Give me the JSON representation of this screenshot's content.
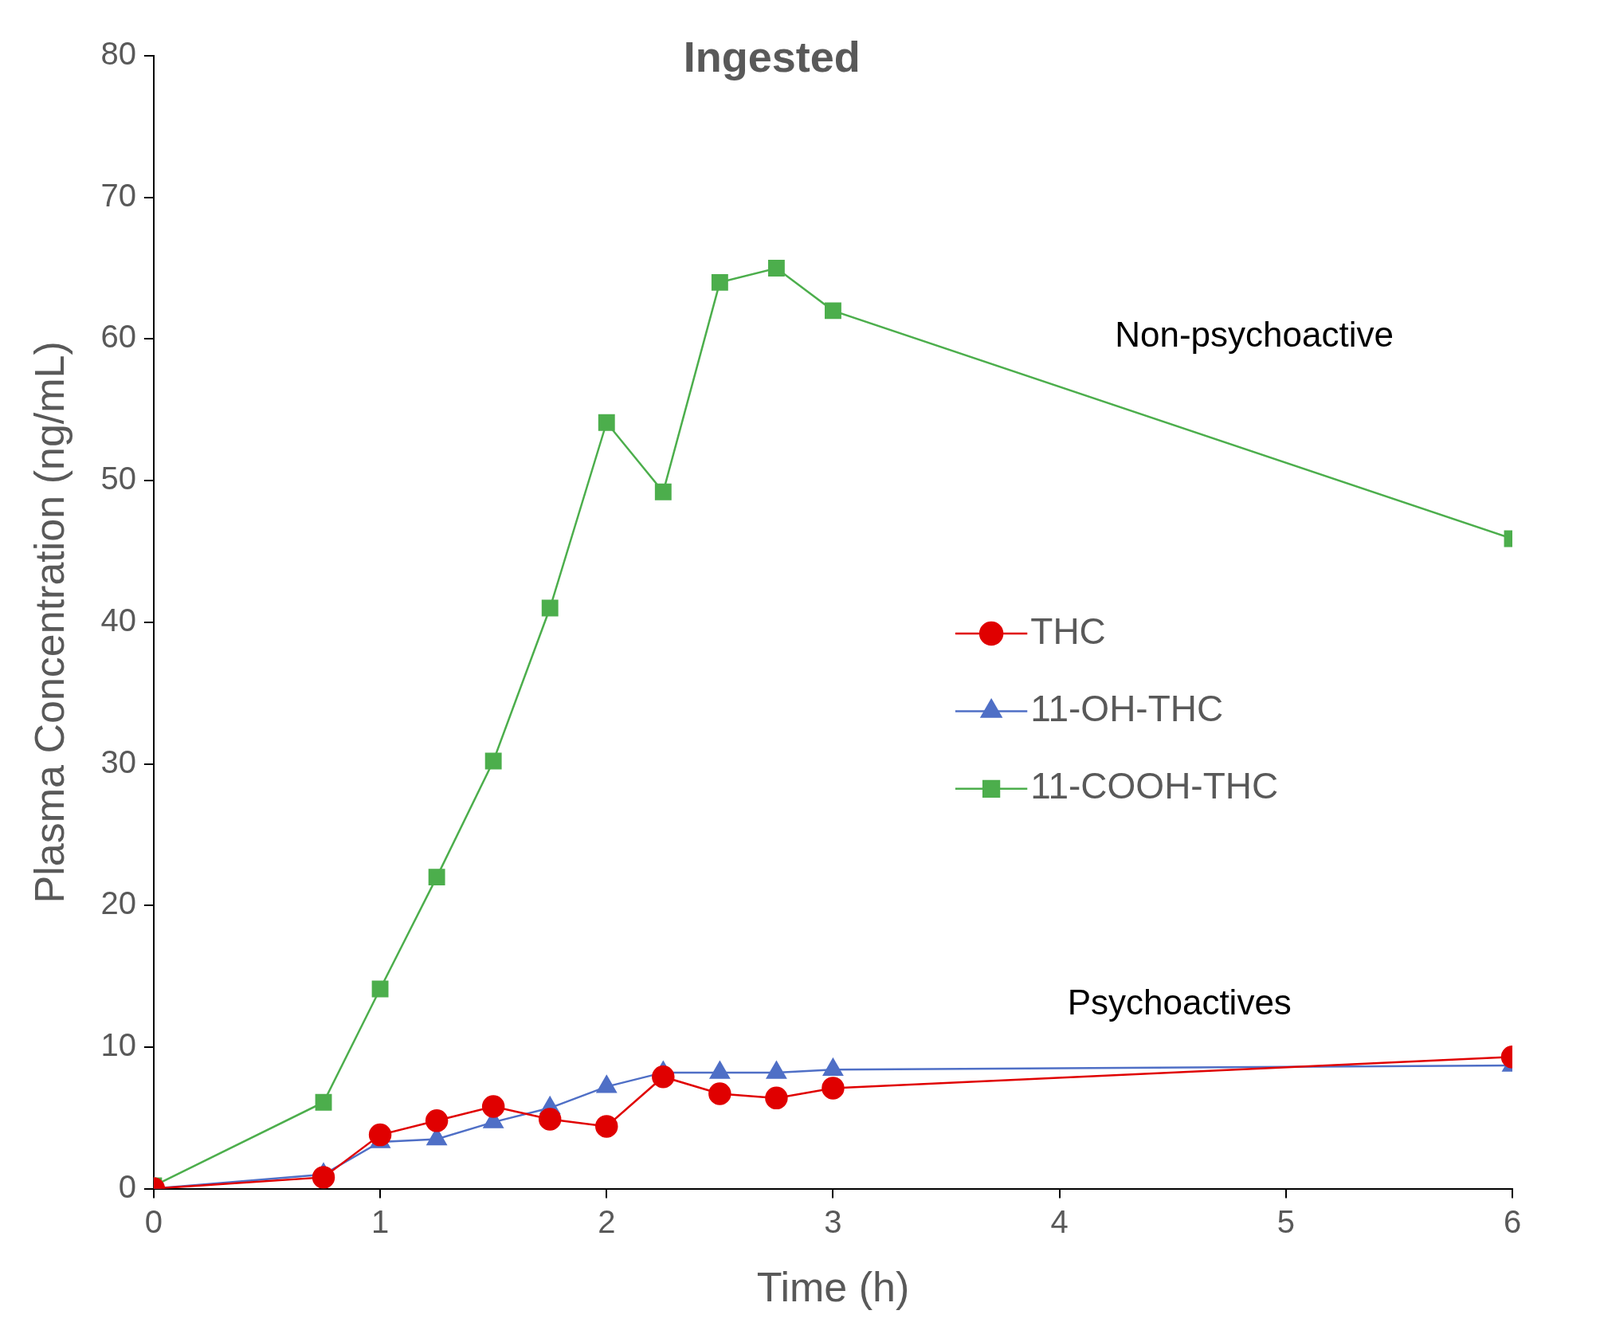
{
  "chart_data": {
    "type": "line",
    "title": "Ingested",
    "x_label": "Time (h)",
    "y_label": "Plasma Concentration (ng/mL)",
    "annotations": [
      "Non-psychoactive",
      "Psychoactives"
    ],
    "x": [
      0,
      0.75,
      1,
      1.25,
      1.5,
      1.75,
      2,
      2.25,
      2.5,
      2.75,
      3,
      6
    ],
    "series": [
      {
        "name": "THC",
        "color": "#e00000",
        "marker": "circle",
        "values": [
          0,
          0.8,
          3.8,
          4.8,
          5.8,
          4.9,
          4.4,
          7.9,
          6.7,
          6.4,
          7.1,
          9.3
        ]
      },
      {
        "name": "11-OH-THC",
        "color": "#4f6fc6",
        "marker": "triangle",
        "values": [
          0,
          1.0,
          3.3,
          3.5,
          4.7,
          5.7,
          7.2,
          8.2,
          8.2,
          8.2,
          8.4,
          8.7
        ]
      },
      {
        "name": "11-COOH-THC",
        "color": "#4cae4c",
        "marker": "square",
        "values": [
          0.2,
          6.1,
          14.1,
          22.0,
          30.2,
          41.0,
          54.1,
          49.2,
          64.0,
          65.0,
          62.0,
          45.9
        ]
      }
    ],
    "xlim": [
      0,
      6
    ],
    "xticks": [
      0,
      1,
      2,
      3,
      4,
      5,
      6
    ],
    "ylim": [
      0,
      80
    ],
    "yticks": [
      0,
      10,
      20,
      30,
      40,
      50,
      60,
      70,
      80
    ],
    "grid": false,
    "legend": "right"
  }
}
